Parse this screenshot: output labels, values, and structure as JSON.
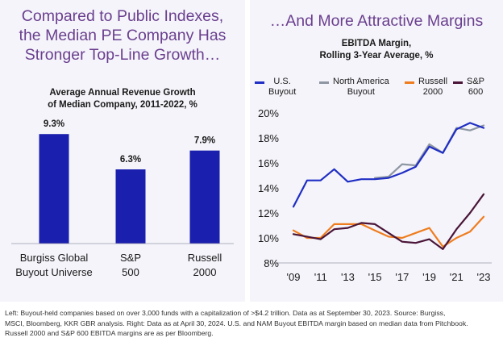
{
  "left": {
    "headline": [
      "Compared to Public Indexes,",
      "the Median PE Company Has",
      "Stronger Top-Line Growth…"
    ],
    "subtitle": [
      "Average Annual Revenue Growth",
      "of Median Company, 2011-2022, %"
    ]
  },
  "right": {
    "headline": "…And More Attractive Margins",
    "subtitle": [
      "EBITDA Margin,",
      "Rolling 3-Year Average, %"
    ]
  },
  "footnote": [
    "Left: Buyout-held companies based on over 3,000 funds with a capitalization of >$4.2 trillion. Data as at September 30, 2023. Source: Burgiss,",
    "MSCI, Bloomberg, KKR GBR analysis. Right: Data as at April 30, 2024. U.S. and NAM Buyout EBITDA margin based on median data from Pitchbook.",
    "Russell 2000 and S&P 600 EBITDA margins are as per Bloomberg."
  ],
  "colors": {
    "bar": "#1a1fad",
    "us_buyout": "#1f2ec4",
    "na_buyout": "#8e96a3",
    "russell": "#ef7d1f",
    "sp600": "#4a1538",
    "headline": "#6b3f8f"
  },
  "chart_data": [
    {
      "type": "bar",
      "title": "Average Annual Revenue Growth of Median Company, 2011-2022, %",
      "categories": [
        [
          "Burgiss Global",
          "Buyout Universe"
        ],
        [
          "S&P",
          "500"
        ],
        [
          "Russell",
          "2000"
        ]
      ],
      "values": [
        9.3,
        6.3,
        7.9
      ],
      "data_labels": [
        "9.3%",
        "6.3%",
        "7.9%"
      ],
      "ylim": [
        0,
        10
      ],
      "grid": false
    },
    {
      "type": "line",
      "title": "EBITDA Margin, Rolling 3-Year Average, %",
      "x_ticks": [
        "'09",
        "'11",
        "'13",
        "'15",
        "'17",
        "'19",
        "'21",
        "'23"
      ],
      "x_tick_values": [
        2009,
        2011,
        2013,
        2015,
        2017,
        2019,
        2021,
        2023
      ],
      "y_ticks": [
        "8%",
        "10%",
        "12%",
        "14%",
        "16%",
        "18%",
        "20%"
      ],
      "y_tick_values": [
        8,
        10,
        12,
        14,
        16,
        18,
        20
      ],
      "ylim": [
        8,
        20
      ],
      "xlim": [
        2009,
        2023.3
      ],
      "legend_position": "top",
      "grid": false,
      "series": [
        {
          "name": [
            "U.S.",
            "Buyout"
          ],
          "color_key": "us_buyout",
          "x": [
            2009,
            2010,
            2011,
            2012,
            2013,
            2014,
            2015,
            2016,
            2017,
            2018,
            2019,
            2020,
            2021,
            2022,
            2023
          ],
          "y": [
            12.5,
            14.6,
            14.6,
            15.5,
            14.5,
            14.7,
            14.7,
            14.8,
            15.2,
            15.7,
            17.3,
            16.8,
            18.7,
            19.2,
            18.8
          ]
        },
        {
          "name": [
            "North America",
            "Buyout"
          ],
          "color_key": "na_buyout",
          "x": [
            2015,
            2016,
            2017,
            2018,
            2019,
            2020,
            2021,
            2022,
            2023
          ],
          "y": [
            14.8,
            14.9,
            15.9,
            15.8,
            17.5,
            16.8,
            18.8,
            18.6,
            19.0
          ]
        },
        {
          "name": [
            "Russell",
            "2000"
          ],
          "color_key": "russell",
          "x": [
            2009,
            2010,
            2011,
            2012,
            2013,
            2014,
            2015,
            2016,
            2017,
            2018,
            2019,
            2020,
            2021,
            2022,
            2023
          ],
          "y": [
            10.6,
            10.0,
            10.0,
            11.1,
            11.1,
            11.1,
            10.6,
            10.1,
            10.0,
            10.4,
            10.8,
            9.3,
            10.0,
            10.5,
            11.7
          ]
        },
        {
          "name": [
            "S&P",
            "600"
          ],
          "color_key": "sp600",
          "x": [
            2009,
            2010,
            2011,
            2012,
            2013,
            2014,
            2015,
            2016,
            2017,
            2018,
            2019,
            2020,
            2021,
            2022,
            2023
          ],
          "y": [
            10.3,
            10.1,
            9.9,
            10.7,
            10.8,
            11.2,
            11.1,
            10.4,
            9.7,
            9.6,
            9.9,
            9.1,
            10.7,
            12.0,
            13.5
          ]
        }
      ]
    }
  ]
}
